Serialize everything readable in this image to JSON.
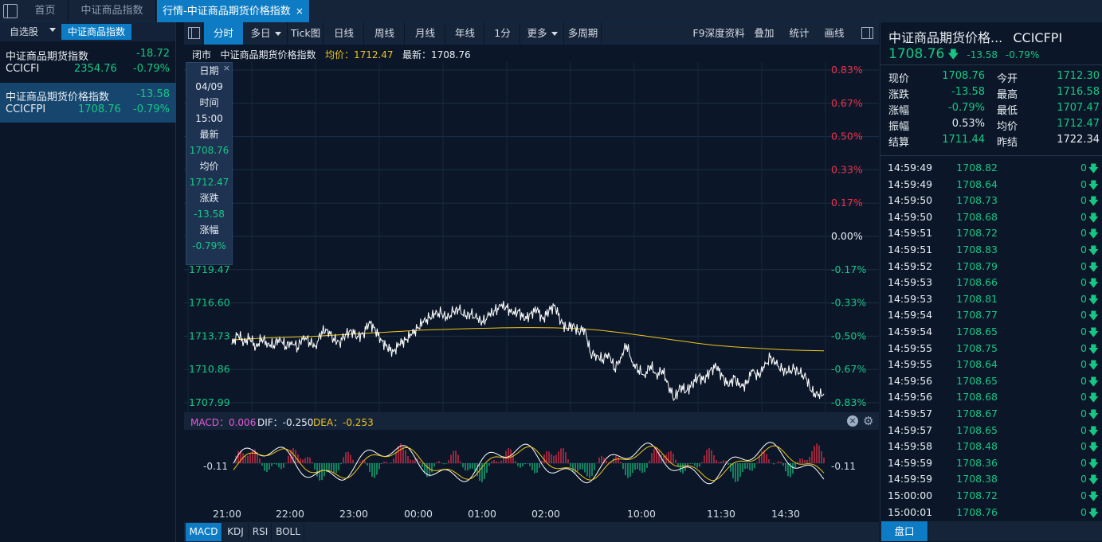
{
  "tabs": [
    {
      "label": "首页"
    },
    {
      "label": "中证商品指数"
    },
    {
      "label": "行情-中证商品期货价格指数",
      "close": "×"
    }
  ],
  "watchlist": {
    "tab_self": "自选股",
    "tab_index": "中证商品指数",
    "items": [
      {
        "name": "中证商品期货指数",
        "change": "-18.72",
        "code": "CCICFI",
        "price": "2354.76",
        "pct": "-0.79%"
      },
      {
        "name": "中证商品期货价格指数",
        "change": "-13.58",
        "code": "CCICFPI",
        "price": "1708.76",
        "pct": "-0.79%"
      }
    ]
  },
  "toolbar": {
    "buttons": [
      "分时",
      "多日",
      "Tick图",
      "日线",
      "周线",
      "月线",
      "年线",
      "1分",
      "更多",
      "多周期"
    ],
    "right_buttons": [
      "F9深度资料",
      "叠加",
      "统计",
      "画线"
    ]
  },
  "infoline": {
    "status": "闭市",
    "name": "中证商品期货价格指数",
    "avg_label": "均价：1712.47",
    "last_label": "最新：1708.76"
  },
  "hover": {
    "close": "×",
    "labels": [
      "日期",
      "04/09",
      "时间",
      "15:00",
      "最新",
      "1708.76",
      "均价",
      "1712.47",
      "涨跌",
      "-13.58",
      "涨幅",
      "-0.79%"
    ]
  },
  "chart_data": {
    "type": "line",
    "title": "",
    "prev_close": 1722.34,
    "ylim": [
      1707.99,
      1736.65
    ],
    "left_ticks": [
      "1719.47",
      "1716.60",
      "1713.73",
      "1710.86",
      "1707.99"
    ],
    "right_ticks": [
      "0.83%",
      "0.67%",
      "0.50%",
      "0.33%",
      "0.17%",
      "0.00%",
      "-0.17%",
      "-0.33%",
      "-0.50%",
      "-0.67%",
      "-0.83%"
    ],
    "x_ticks": [
      "21:00",
      "22:00",
      "23:00",
      "00:00",
      "01:00",
      "02:00",
      "10:00",
      "11:30",
      "14:30"
    ],
    "series": [
      {
        "name": "最新",
        "color": "#ffffff",
        "values": [
          1713.0,
          1713.9,
          1713.2,
          1713.6,
          1712.8,
          1713.5,
          1713.1,
          1712.9,
          1713.6,
          1712.8,
          1713.3,
          1712.7,
          1713.8,
          1713.2,
          1712.9,
          1714.1,
          1714.3,
          1713.5,
          1713.2,
          1713.9,
          1714.2,
          1713.7,
          1713.9,
          1715.0,
          1714.2,
          1713.4,
          1712.7,
          1712.4,
          1713.0,
          1713.4,
          1713.8,
          1714.4,
          1714.9,
          1715.3,
          1715.6,
          1715.7,
          1715.2,
          1715.8,
          1716.0,
          1715.4,
          1715.6,
          1715.2,
          1714.9,
          1715.5,
          1715.9,
          1716.3,
          1716.2,
          1715.6,
          1715.9,
          1715.1,
          1715.7,
          1716.0,
          1715.2,
          1715.9,
          1716.4,
          1715.0,
          1714.4,
          1714.7,
          1714.1,
          1714.4,
          1712.2,
          1712.1,
          1711.7,
          1712.3,
          1710.9,
          1711.9,
          1713.0,
          1711.5,
          1710.8,
          1710.4,
          1711.2,
          1710.4,
          1710.8,
          1709.5,
          1708.3,
          1709.4,
          1709.0,
          1709.6,
          1710.3,
          1709.9,
          1710.8,
          1711.1,
          1710.3,
          1709.4,
          1710.2,
          1709.3,
          1709.6,
          1710.7,
          1710.3,
          1711.0,
          1711.9,
          1711.3,
          1710.8,
          1710.6,
          1710.9,
          1710.5,
          1710.1,
          1708.9,
          1708.6,
          1708.76
        ]
      },
      {
        "name": "均价",
        "color": "#f0c419",
        "values": [
          1713.4,
          1713.45,
          1713.5,
          1713.55,
          1713.6,
          1713.62,
          1713.65,
          1713.68,
          1713.7,
          1713.75,
          1713.8,
          1713.85,
          1713.9,
          1713.95,
          1714.0,
          1714.05,
          1714.1,
          1714.15,
          1714.2,
          1714.25,
          1714.28,
          1714.3,
          1714.33,
          1714.36,
          1714.38,
          1714.4,
          1714.42,
          1714.44,
          1714.45,
          1714.46,
          1714.46,
          1714.45,
          1714.44,
          1714.42,
          1714.38,
          1714.34,
          1714.28,
          1714.2,
          1714.1,
          1714.0,
          1713.88,
          1713.76,
          1713.64,
          1713.52,
          1713.4,
          1713.28,
          1713.16,
          1713.05,
          1712.95,
          1712.88,
          1712.8,
          1712.75,
          1712.7,
          1712.65,
          1712.6,
          1712.55,
          1712.52,
          1712.5,
          1712.48,
          1712.47
        ]
      }
    ],
    "macd": {
      "label": "MACD：0.006",
      "dif": "DIF：-0.250",
      "dea": "DEA：-0.253",
      "tick": "-0.11"
    }
  },
  "quote": {
    "title": "中证商品期货价格...",
    "code": "CCICFPI",
    "price": "1708.76",
    "change": "-13.58",
    "pct": "-0.79%",
    "rows": [
      {
        "l1": "现价",
        "v1": "1708.76",
        "l2": "今开",
        "v2": "1712.30"
      },
      {
        "l1": "涨跌",
        "v1": "-13.58",
        "l2": "最高",
        "v2": "1716.58"
      },
      {
        "l1": "涨幅",
        "v1": "-0.79%",
        "l2": "最低",
        "v2": "1707.47"
      },
      {
        "l1": "振幅",
        "v1": "0.53%",
        "l2": "均价",
        "v2": "1712.47"
      },
      {
        "l1": "结算",
        "v1": "1711.44",
        "l2": "昨结",
        "v2": "1722.34"
      }
    ],
    "ticks": [
      {
        "t": "14:59:49",
        "p": "1708.82",
        "v": "0"
      },
      {
        "t": "14:59:49",
        "p": "1708.64",
        "v": "0"
      },
      {
        "t": "14:59:50",
        "p": "1708.73",
        "v": "0"
      },
      {
        "t": "14:59:50",
        "p": "1708.68",
        "v": "0"
      },
      {
        "t": "14:59:51",
        "p": "1708.72",
        "v": "0"
      },
      {
        "t": "14:59:51",
        "p": "1708.83",
        "v": "0"
      },
      {
        "t": "14:59:52",
        "p": "1708.79",
        "v": "0"
      },
      {
        "t": "14:59:53",
        "p": "1708.66",
        "v": "0"
      },
      {
        "t": "14:59:53",
        "p": "1708.81",
        "v": "0"
      },
      {
        "t": "14:59:54",
        "p": "1708.77",
        "v": "0"
      },
      {
        "t": "14:59:54",
        "p": "1708.65",
        "v": "0"
      },
      {
        "t": "14:59:55",
        "p": "1708.75",
        "v": "0"
      },
      {
        "t": "14:59:55",
        "p": "1708.64",
        "v": "0"
      },
      {
        "t": "14:59:56",
        "p": "1708.65",
        "v": "0"
      },
      {
        "t": "14:59:56",
        "p": "1708.68",
        "v": "0"
      },
      {
        "t": "14:59:57",
        "p": "1708.67",
        "v": "0"
      },
      {
        "t": "14:59:57",
        "p": "1708.65",
        "v": "0"
      },
      {
        "t": "14:59:58",
        "p": "1708.48",
        "v": "0"
      },
      {
        "t": "14:59:59",
        "p": "1708.36",
        "v": "0"
      },
      {
        "t": "14:59:59",
        "p": "1708.38",
        "v": "0"
      },
      {
        "t": "15:00:00",
        "p": "1708.72",
        "v": "0"
      },
      {
        "t": "15:00:01",
        "p": "1708.76",
        "v": "0"
      }
    ],
    "bottom_button": "盘口"
  },
  "indicators": [
    "MACD",
    "KDJ",
    "RSI",
    "BOLL"
  ],
  "colors": {
    "up": "#f2304b",
    "down": "#16c784",
    "accent": "#0d7cc4",
    "avg": "#f0c419"
  }
}
